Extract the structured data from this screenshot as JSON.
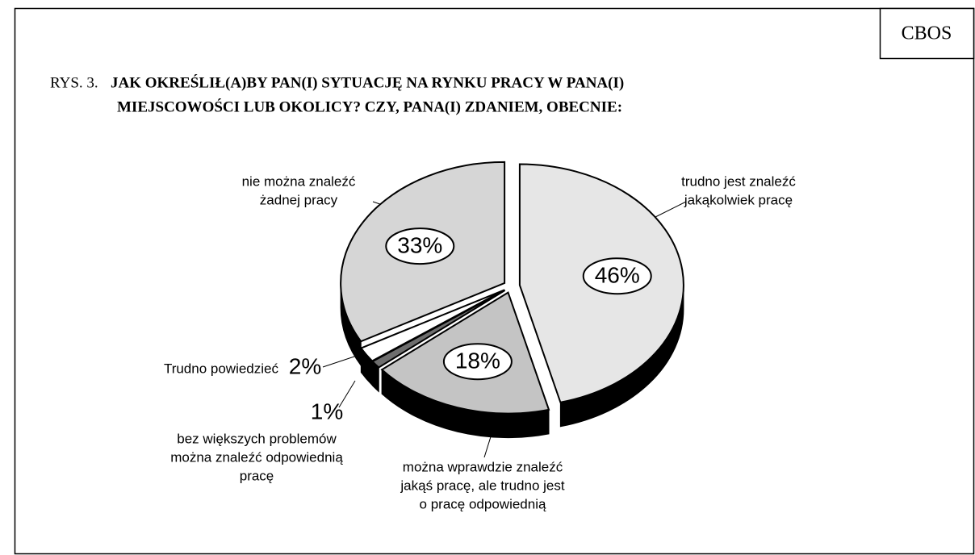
{
  "header": "CBOS",
  "chart_data": {
    "type": "pie3d",
    "figure_number": "RYS. 3.",
    "title": [
      "JAK OKREŚLIŁ(A)BY PAN(I) SYTUACJĘ NA RYNKU PRACY W PANA(I)",
      "MIEJSCOWOŚCI LUB OKOLICY? CZY, PANA(I) ZDANIEM, OBECNIE:"
    ],
    "categories": [
      [
        "trudno jest znaleźć",
        "jakąkolwiek pracę"
      ],
      [
        "można wprawdzie znaleźć",
        "jakąś pracę, ale trudno jest",
        "o pracę odpowiednią"
      ],
      [
        "bez większych problemów",
        "można znaleźć odpowiednią",
        "pracę"
      ],
      [
        "Trudno powiedzieć"
      ],
      [
        "nie można znaleźć",
        "żadnej pracy"
      ]
    ],
    "values": [
      46,
      18,
      1,
      2,
      33
    ],
    "value_labels": [
      "46%",
      "18%",
      "1%",
      "2%",
      "33%"
    ],
    "colors": [
      "#e6e6e6",
      "#c4c4c4",
      "#6e6e6e",
      "#ffffff",
      "#d6d6d6"
    ]
  }
}
